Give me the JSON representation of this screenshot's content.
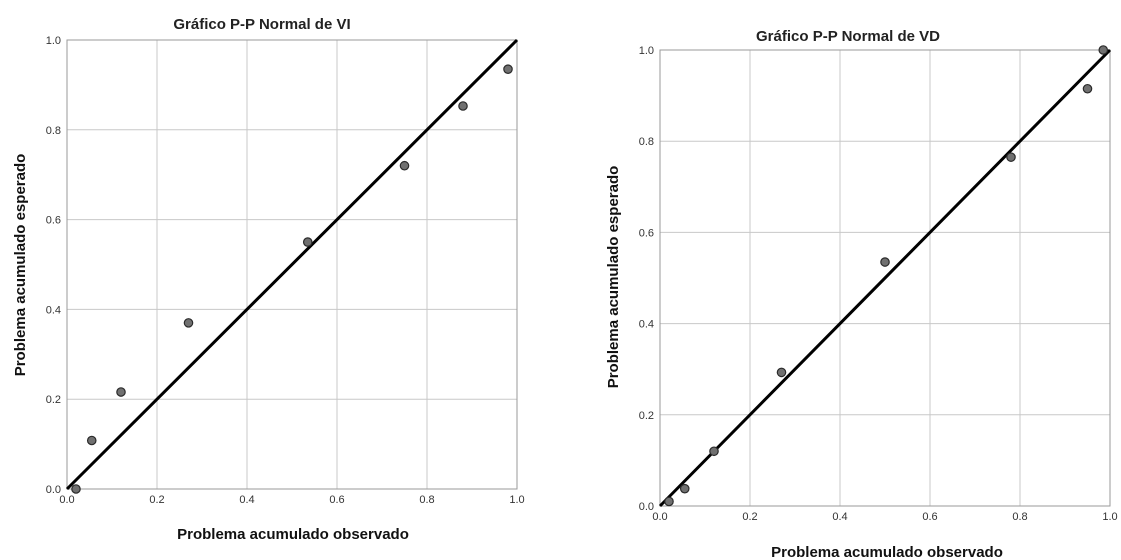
{
  "chart_data": [
    {
      "type": "scatter",
      "title": "Gráfico P-P Normal de VI",
      "xlabel": "Problema acumulado observado",
      "ylabel": "Problema acumulado esperado",
      "xlim": [
        0,
        1
      ],
      "ylim": [
        0,
        1
      ],
      "x_ticks": [
        "0.0",
        "0.2",
        "0.4",
        "0.6",
        "0.8",
        "1.0"
      ],
      "y_ticks": [
        "0.0",
        "0.2",
        "0.4",
        "0.6",
        "0.8",
        "1.0"
      ],
      "grid": true,
      "reference_line": {
        "from": [
          0,
          0
        ],
        "to": [
          1,
          1
        ]
      },
      "points": [
        {
          "x": 0.02,
          "y": 0.0
        },
        {
          "x": 0.055,
          "y": 0.108
        },
        {
          "x": 0.12,
          "y": 0.216
        },
        {
          "x": 0.27,
          "y": 0.37
        },
        {
          "x": 0.535,
          "y": 0.55
        },
        {
          "x": 0.75,
          "y": 0.72
        },
        {
          "x": 0.88,
          "y": 0.853
        },
        {
          "x": 0.98,
          "y": 0.935
        }
      ],
      "colors": {
        "point_fill": "#707070",
        "point_stroke": "#2a2a2a",
        "line": "#000000",
        "grid": "#c8c8c8"
      }
    },
    {
      "type": "scatter",
      "title": "Gráfico P-P Normal de VD",
      "xlabel": "Problema acumulado observado",
      "ylabel": "Problema acumulado esperado",
      "xlim": [
        0,
        1
      ],
      "ylim": [
        0,
        1
      ],
      "x_ticks": [
        "0.0",
        "0.2",
        "0.4",
        "0.6",
        "0.8",
        "1.0"
      ],
      "y_ticks": [
        "0.0",
        "0.2",
        "0.4",
        "0.6",
        "0.8",
        "1.0"
      ],
      "grid": true,
      "reference_line": {
        "from": [
          0,
          0
        ],
        "to": [
          1,
          1
        ]
      },
      "points": [
        {
          "x": 0.02,
          "y": 0.01
        },
        {
          "x": 0.055,
          "y": 0.038
        },
        {
          "x": 0.12,
          "y": 0.12
        },
        {
          "x": 0.27,
          "y": 0.293
        },
        {
          "x": 0.5,
          "y": 0.535
        },
        {
          "x": 0.78,
          "y": 0.765
        },
        {
          "x": 0.95,
          "y": 0.915
        },
        {
          "x": 0.985,
          "y": 1.0
        }
      ],
      "colors": {
        "point_fill": "#707070",
        "point_stroke": "#2a2a2a",
        "line": "#000000",
        "grid": "#c8c8c8"
      }
    }
  ]
}
